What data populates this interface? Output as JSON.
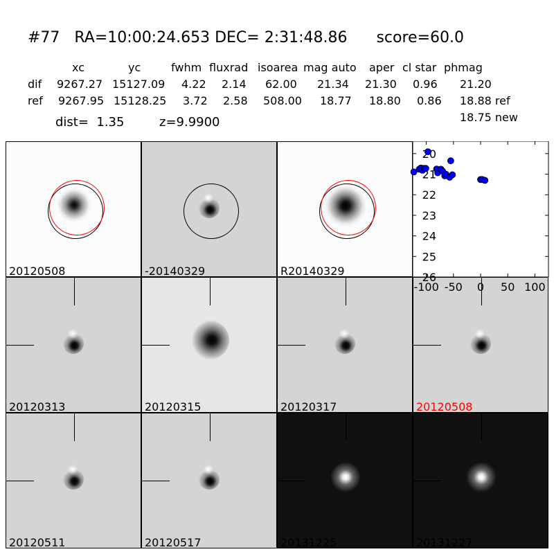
{
  "header": {
    "title": "#77   RA=10:00:24.653 DEC= 2:31:48.86      score=60.0",
    "columns": [
      "xc",
      "yc",
      "fwhm",
      "fluxrad",
      "isoarea",
      "mag auto",
      "aper",
      "cl star",
      "phmag"
    ],
    "rows": [
      {
        "label": "dif",
        "values": [
          "9267.27",
          "15127.09",
          "4.22",
          "2.14",
          "62.00",
          "21.34",
          "21.30",
          "0.96",
          "21.20"
        ]
      },
      {
        "label": "ref",
        "values": [
          "9267.95",
          "15128.25",
          "3.72",
          "2.58",
          "508.00",
          "18.77",
          "18.80",
          "0.86",
          "18.88 ref"
        ]
      }
    ],
    "extra_phmag": "18.75 new",
    "dist": "dist=  1.35",
    "z": "z=9.9900"
  },
  "panels": [
    {
      "label": "20120508",
      "style": "white",
      "circles": true,
      "label_color": "#000000"
    },
    {
      "label": "-20140329",
      "style": "diff",
      "circles": true,
      "label_color": "#000000"
    },
    {
      "label": "R20140329",
      "style": "white-big",
      "circles": true,
      "label_color": "#000000"
    },
    {
      "label": "20120313",
      "style": "diff",
      "label_color": "#000000"
    },
    {
      "label": "20120315",
      "style": "diff-big",
      "label_color": "#000000"
    },
    {
      "label": "20120317",
      "style": "diff",
      "label_color": "#000000"
    },
    {
      "label": "20120508",
      "style": "diff",
      "label_color": "#ff0000"
    },
    {
      "label": "20120511",
      "style": "diff",
      "label_color": "#000000"
    },
    {
      "label": "20120517",
      "style": "diff",
      "label_color": "#000000"
    },
    {
      "label": "20131225",
      "style": "dark",
      "label_color": "#000000"
    },
    {
      "label": "20131227",
      "style": "dark",
      "label_color": "#000000"
    }
  ],
  "chart_data": {
    "type": "scatter",
    "xlim": [
      -125,
      125
    ],
    "ylim": [
      26,
      19.4
    ],
    "y_inverted": true,
    "xticks": [
      -100,
      -50,
      0,
      50,
      100
    ],
    "yticks": [
      20,
      21,
      22,
      23,
      24,
      25,
      26
    ],
    "marker_color": "#0000ff",
    "points": [
      [
        -123,
        20.89
      ],
      [
        -97,
        19.91
      ],
      [
        -55,
        20.35
      ],
      [
        -113,
        20.76
      ],
      [
        -110,
        20.7
      ],
      [
        -107,
        20.81
      ],
      [
        -104,
        20.72
      ],
      [
        -101,
        20.72
      ],
      [
        -81,
        20.75
      ],
      [
        -79,
        20.93
      ],
      [
        -73,
        20.76
      ],
      [
        -70,
        20.85
      ],
      [
        -66,
        21.08
      ],
      [
        -64,
        21.0
      ],
      [
        -57,
        21.15
      ],
      [
        -52,
        21.03
      ],
      [
        0,
        21.26
      ],
      [
        3,
        21.26
      ],
      [
        8,
        21.3
      ]
    ]
  }
}
